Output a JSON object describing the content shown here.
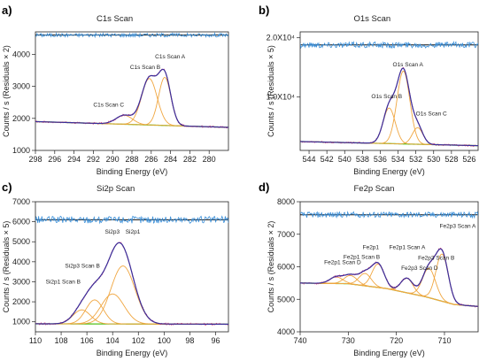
{
  "chart_data": [
    {
      "type": "line",
      "panel": "a)",
      "title": "C1s Scan",
      "xlabel": "Binding Energy (eV)",
      "ylabel": "Counts / s  (Residuals × 2)",
      "xlim": [
        298,
        278
      ],
      "ylim": [
        1000,
        4700
      ],
      "x_reversed": true,
      "xticks": [
        298,
        296,
        294,
        292,
        290,
        288,
        286,
        284,
        282,
        280
      ],
      "yticks": [
        1000,
        2000,
        3000,
        4000
      ],
      "ytick_labels": [
        "1000",
        "2000",
        "3000",
        "4000"
      ],
      "residual_baseline": 4600,
      "residual_amplitude": 60,
      "background": {
        "x": [
          298,
          278
        ],
        "y": [
          1900,
          1720
        ]
      },
      "peaks": [
        {
          "name": "C1s Scan A",
          "center": 284.6,
          "height": 1500,
          "fwhm": 1.5
        },
        {
          "name": "C1s Scan B",
          "center": 286.2,
          "height": 1450,
          "fwhm": 1.9
        },
        {
          "name": "C1s Scan C",
          "center": 288.8,
          "height": 280,
          "fwhm": 2.0
        }
      ],
      "annotations": [
        {
          "text": "C1s Scan A",
          "x": 285.6,
          "y": 3870
        },
        {
          "text": "C1s Scan B",
          "x": 288.2,
          "y": 3540
        },
        {
          "text": "C1s Scan C",
          "x": 292.0,
          "y": 2360
        }
      ]
    },
    {
      "type": "line",
      "panel": "b)",
      "title": "O1s Scan",
      "xlabel": "Binding Energy (eV)",
      "ylabel": "Counts / s  (Residuals × 5)",
      "xlim": [
        545,
        525
      ],
      "ylim": [
        1000,
        21000
      ],
      "x_reversed": true,
      "xticks": [
        544,
        542,
        540,
        538,
        536,
        534,
        532,
        530,
        528,
        526
      ],
      "yticks": [
        10000,
        20000
      ],
      "ytick_labels": [
        "1.0X10⁴",
        "2.0X10⁴"
      ],
      "residual_baseline": 18800,
      "residual_amplitude": 500,
      "background": {
        "x": [
          545,
          525
        ],
        "y": [
          2500,
          1800
        ]
      },
      "peaks": [
        {
          "name": "O1s Scan A",
          "center": 533.4,
          "height": 12300,
          "fwhm": 1.7
        },
        {
          "name": "O1s Scan B",
          "center": 535.0,
          "height": 6000,
          "fwhm": 1.6
        },
        {
          "name": "O1s Scan C",
          "center": 531.8,
          "height": 2800,
          "fwhm": 1.4
        }
      ],
      "annotations": [
        {
          "text": "O1s Scan A",
          "x": 534.6,
          "y": 15200
        },
        {
          "text": "O1s Scan B",
          "x": 537.0,
          "y": 9800
        },
        {
          "text": "O1s Scan C",
          "x": 532.0,
          "y": 6900
        }
      ]
    },
    {
      "type": "line",
      "panel": "c)",
      "title": "Si2p Scan",
      "xlabel": "Binding Energy (eV)",
      "ylabel": "Counts / s  (Residuals × 5)",
      "xlim": [
        110,
        95
      ],
      "ylim": [
        500,
        7000
      ],
      "x_reversed": true,
      "xticks": [
        110,
        108,
        106,
        104,
        102,
        100,
        98,
        96
      ],
      "yticks": [
        1000,
        2000,
        3000,
        4000,
        5000,
        6000,
        7000
      ],
      "ytick_labels": [
        "1000",
        "2000",
        "3000",
        "4000",
        "5000",
        "6000",
        "7000"
      ],
      "residual_baseline": 6100,
      "residual_amplitude": 180,
      "background": {
        "x": [
          110,
          95
        ],
        "y": [
          900,
          880
        ]
      },
      "peaks": [
        {
          "name": "Si2p1",
          "center": 103.2,
          "height": 2900,
          "fwhm": 2.2
        },
        {
          "name": "Si2p3",
          "center": 104.0,
          "height": 1500,
          "fwhm": 2.1
        },
        {
          "name": "Si2p3 Scan B",
          "center": 105.4,
          "height": 1200,
          "fwhm": 1.6
        },
        {
          "name": "Si2p1 Scan B",
          "center": 106.4,
          "height": 700,
          "fwhm": 1.6
        }
      ],
      "annotations": [
        {
          "text": "Si2p3",
          "x": 104.6,
          "y": 5400
        },
        {
          "text": "Si2p1",
          "x": 103.0,
          "y": 5400
        },
        {
          "text": "Si2p3 Scan B",
          "x": 107.7,
          "y": 3700
        },
        {
          "text": "Si2p1 Scan B",
          "x": 109.2,
          "y": 2900
        }
      ]
    },
    {
      "type": "line",
      "panel": "d)",
      "title": "Fe2p Scan",
      "xlabel": "Binding Energy (eV)",
      "ylabel": "Counts / s  (Residuals × 2)",
      "xlim": [
        740,
        703
      ],
      "ylim": [
        4000,
        8000
      ],
      "x_reversed": true,
      "xticks": [
        740,
        730,
        720,
        710
      ],
      "yticks": [
        4000,
        5000,
        6000,
        7000,
        8000
      ],
      "ytick_labels": [
        "4000",
        "5000",
        "6000",
        "7000",
        "8000"
      ],
      "residual_baseline": 7600,
      "residual_amplitude": 90,
      "background": {
        "x": [
          740,
          730,
          722,
          714,
          708,
          703
        ],
        "y": [
          5500,
          5480,
          5330,
          5080,
          4840,
          4780
        ]
      },
      "peaks": [
        {
          "name": "Fe2p3 Scan A",
          "center": 710.5,
          "height": 1450,
          "fwhm": 3.0
        },
        {
          "name": "Fe2p3 Scan B",
          "center": 713.2,
          "height": 900,
          "fwhm": 3.2
        },
        {
          "name": "Fe2p3 Scan D",
          "center": 717.8,
          "height": 450,
          "fwhm": 3.0
        },
        {
          "name": "Fe2p1 Scan A",
          "center": 723.8,
          "height": 720,
          "fwhm": 3.0
        },
        {
          "name": "Fe2p1",
          "center": 726.5,
          "height": 380,
          "fwhm": 3.0
        },
        {
          "name": "Fe2p1 Scan B",
          "center": 729.5,
          "height": 260,
          "fwhm": 3.2
        },
        {
          "name": "Fe2p1 Scan D",
          "center": 732.5,
          "height": 200,
          "fwhm": 3.2
        }
      ],
      "annotations": [
        {
          "text": "Fe2p3 Scan A",
          "x": 711.0,
          "y": 7200
        },
        {
          "text": "Fe2p1",
          "x": 727.0,
          "y": 6550
        },
        {
          "text": "Fe2p1 Scan A",
          "x": 721.5,
          "y": 6550
        },
        {
          "text": "Fe2p3 Scan B",
          "x": 715.5,
          "y": 6220
        },
        {
          "text": "Fe2p1 Scan B",
          "x": 731.0,
          "y": 6240
        },
        {
          "text": "Fe2p1 Scan D",
          "x": 735.0,
          "y": 6080
        },
        {
          "text": "Fe2p3 Scan D",
          "x": 719.0,
          "y": 5900
        }
      ]
    }
  ],
  "colors": {
    "residual": "#3a8fd9",
    "zero_line": "#111111",
    "envelope": "#3a2f9a",
    "data": "#e0417a",
    "component": "#f0a640",
    "background": "#55c11a"
  }
}
